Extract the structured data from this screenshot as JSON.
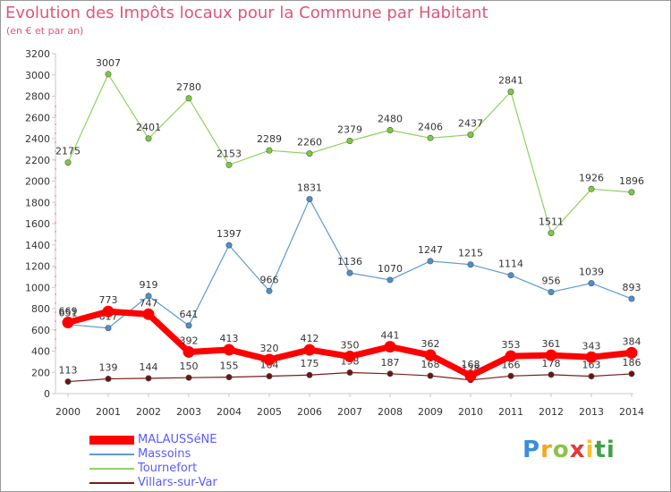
{
  "title": "Evolution des Impôts locaux pour la Commune par Habitant",
  "subtitle": "(en € et par an)",
  "logo": {
    "text": "Proxiti"
  },
  "chart_data": {
    "type": "line",
    "x": [
      "2000",
      "2001",
      "2002",
      "2003",
      "2004",
      "2005",
      "2006",
      "2007",
      "2008",
      "2009",
      "2010",
      "2011",
      "2012",
      "2013",
      "2014"
    ],
    "ylim": [
      0,
      3200
    ],
    "yticks": [
      0,
      200,
      400,
      600,
      800,
      1000,
      1200,
      1400,
      1600,
      1800,
      2000,
      2200,
      2400,
      2600,
      2800,
      3000,
      3200
    ],
    "grid": false,
    "legend": "bottom-left",
    "series": [
      {
        "name": "Tournefort",
        "color": "#90d060",
        "marker": "#7ccc3c",
        "width": 1.2,
        "values": [
          2175,
          3007,
          2401,
          2780,
          2153,
          2289,
          2260,
          2379,
          2480,
          2406,
          2437,
          2841,
          1511,
          1926,
          1896
        ]
      },
      {
        "name": "Massoins",
        "color": "#5b9bd5",
        "marker": "#4a90d0",
        "width": 1.2,
        "values": [
          651,
          617,
          919,
          641,
          1397,
          966,
          1831,
          1136,
          1070,
          1247,
          1215,
          1114,
          956,
          1039,
          893
        ]
      },
      {
        "name": "Villars-sur-Var",
        "color": "#7b1c1c",
        "marker": "#6b1414",
        "width": 1.2,
        "values": [
          113,
          139,
          144,
          150,
          155,
          164,
          175,
          198,
          187,
          168,
          128,
          166,
          178,
          163,
          186
        ]
      },
      {
        "name": "MALAUSSéNE",
        "color": "#ff0000",
        "marker": "#ff0000",
        "width": 7,
        "values": [
          669,
          773,
          747,
          392,
          413,
          320,
          412,
          350,
          441,
          362,
          168,
          353,
          361,
          343,
          384
        ]
      }
    ],
    "legend_order": [
      "MALAUSSéNE",
      "Massoins",
      "Tournefort",
      "Villars-sur-Var"
    ]
  }
}
